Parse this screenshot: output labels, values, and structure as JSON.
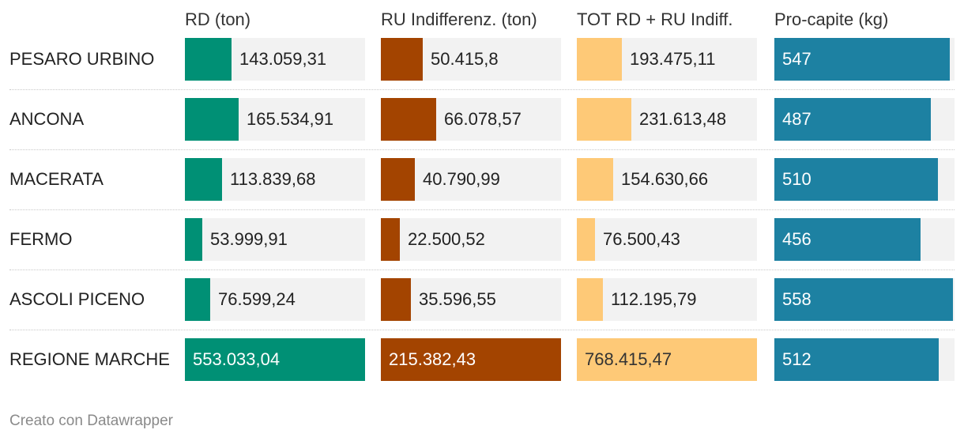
{
  "chart_data": {
    "type": "table",
    "columns": [
      {
        "key": "rd",
        "label": "RD (ton)",
        "color": "#009075",
        "max": 553033.04
      },
      {
        "key": "ru",
        "label": "RU Indifferenz. (ton)",
        "color": "#a34400",
        "max": 215382.43
      },
      {
        "key": "tot",
        "label": "TOT RD + RU Indiff.",
        "color": "#fec977",
        "max": 768415.47
      },
      {
        "key": "pc",
        "label": "Pro-capite (kg)",
        "color": "#1d81a2",
        "max": 562
      }
    ],
    "rows": [
      {
        "label": "PESARO URBINO",
        "values": [
          143059.31,
          50415.8,
          193475.11,
          547
        ],
        "display": [
          "143.059,31",
          "50.415,8",
          "193.475,11",
          "547"
        ]
      },
      {
        "label": "ANCONA",
        "values": [
          165534.91,
          66078.57,
          231613.48,
          487
        ],
        "display": [
          "165.534,91",
          "66.078,57",
          "231.613,48",
          "487"
        ]
      },
      {
        "label": "MACERATA",
        "values": [
          113839.68,
          40790.99,
          154630.66,
          510
        ],
        "display": [
          "113.839,68",
          "40.790,99",
          "154.630,66",
          "510"
        ]
      },
      {
        "label": "FERMO",
        "values": [
          53999.91,
          22500.52,
          76500.43,
          456
        ],
        "display": [
          "53.999,91",
          "22.500,52",
          "76.500,43",
          "456"
        ]
      },
      {
        "label": "ASCOLI PICENO",
        "values": [
          76599.24,
          35596.55,
          112195.79,
          558
        ],
        "display": [
          "76.599,24",
          "35.596,55",
          "112.195,79",
          "558"
        ]
      },
      {
        "label": "REGIONE MARCHE",
        "values": [
          553033.04,
          215382.43,
          768415.47,
          512
        ],
        "display": [
          "553.033,04",
          "215.382,43",
          "768.415,47",
          "512"
        ]
      }
    ]
  },
  "footer": {
    "text": "Creato con Datawrapper"
  }
}
